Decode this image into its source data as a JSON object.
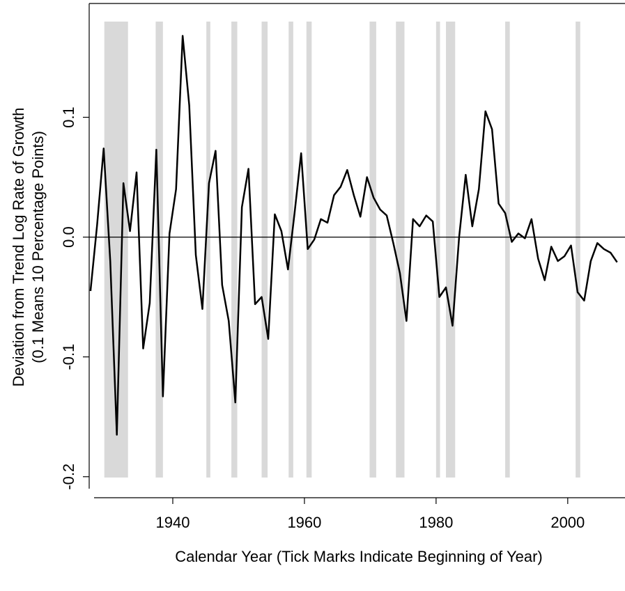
{
  "chart_data": {
    "type": "line",
    "ylabel": [
      "Deviation from Trend Log Rate of Growth",
      "(0.1 Means 10 Percentage Points)"
    ],
    "xlabel": "Calendar Year (Tick Marks Indicate Beginning of Year)",
    "x": [
      1927.5,
      1928.5,
      1929.5,
      1930.5,
      1931.5,
      1932.5,
      1933.5,
      1934.5,
      1935.5,
      1936.5,
      1937.5,
      1938.5,
      1939.5,
      1940.5,
      1941.5,
      1942.5,
      1943.5,
      1944.5,
      1945.5,
      1946.5,
      1947.5,
      1948.5,
      1949.5,
      1950.5,
      1951.5,
      1952.5,
      1953.5,
      1954.5,
      1955.5,
      1956.5,
      1957.5,
      1958.5,
      1959.5,
      1960.5,
      1961.5,
      1962.5,
      1963.5,
      1964.5,
      1965.5,
      1966.5,
      1967.5,
      1968.5,
      1969.5,
      1970.5,
      1971.5,
      1972.5,
      1973.5,
      1974.5,
      1975.5,
      1976.5,
      1977.5,
      1978.5,
      1979.5,
      1980.5,
      1981.5,
      1982.5,
      1983.5,
      1984.5,
      1985.5,
      1986.5,
      1987.5,
      1988.5,
      1989.5,
      1990.5,
      1991.5,
      1992.5,
      1993.5,
      1994.5,
      1995.5,
      1996.5,
      1997.5,
      1998.5,
      1999.5,
      2000.5,
      2001.5,
      2002.5,
      2003.5,
      2004.5,
      2005.5,
      2006.5,
      2007.5
    ],
    "values": [
      -0.045,
      0.01,
      0.074,
      -0.02,
      -0.165,
      0.045,
      0.005,
      0.054,
      -0.093,
      -0.055,
      0.073,
      -0.133,
      0.003,
      0.04,
      0.168,
      0.11,
      -0.015,
      -0.06,
      0.045,
      0.072,
      -0.04,
      -0.07,
      -0.138,
      0.025,
      0.057,
      -0.056,
      -0.05,
      -0.085,
      0.019,
      0.005,
      -0.027,
      0.02,
      0.07,
      -0.01,
      -0.002,
      0.015,
      0.012,
      0.035,
      0.042,
      0.056,
      0.035,
      0.017,
      0.05,
      0.033,
      0.023,
      0.018,
      -0.005,
      -0.03,
      -0.07,
      0.015,
      0.009,
      0.018,
      0.013,
      -0.05,
      -0.042,
      -0.074,
      0.0,
      0.052,
      0.009,
      0.04,
      0.105,
      0.09,
      0.028,
      0.02,
      -0.004,
      0.003,
      -0.001,
      0.015,
      -0.018,
      -0.036,
      -0.008,
      -0.02,
      -0.016,
      -0.007,
      -0.046,
      -0.053,
      -0.02,
      -0.005,
      -0.01,
      -0.013,
      -0.021
    ],
    "color": "#000000",
    "shaded_periods": [
      [
        1929.6,
        1933.2
      ],
      [
        1937.4,
        1938.5
      ],
      [
        1945.1,
        1945.7
      ],
      [
        1948.9,
        1949.8
      ],
      [
        1953.5,
        1954.4
      ],
      [
        1957.6,
        1958.3
      ],
      [
        1960.3,
        1961.1
      ],
      [
        1969.9,
        1970.9
      ],
      [
        1973.9,
        1975.2
      ],
      [
        1980.0,
        1980.6
      ],
      [
        1981.5,
        1982.9
      ],
      [
        1990.5,
        1991.2
      ],
      [
        2001.2,
        2001.9
      ]
    ],
    "shade_color": "#d9d9d9",
    "reference_line": 0,
    "xlim": [
      1927.3,
      2008.7
    ],
    "xticks": [
      1940,
      1960,
      1980,
      2000
    ],
    "ylim": [
      -0.21,
      0.195
    ],
    "yticks": [
      -0.2,
      -0.1,
      {
        "value": 0,
        "label": "0.0"
      },
      0.1
    ]
  }
}
